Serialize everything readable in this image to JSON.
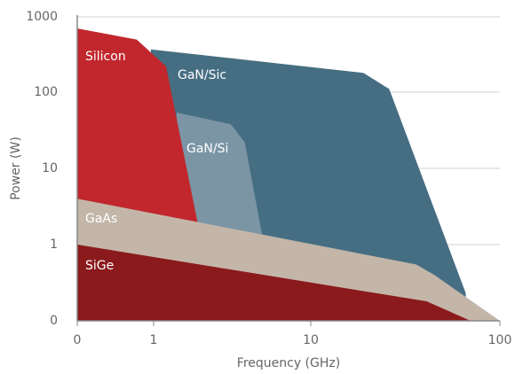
{
  "chart_data": {
    "type": "region",
    "x_label": "Frequency (GHz)",
    "y_label": "Power (W)",
    "log_x": true,
    "log_y": true,
    "grid": true,
    "xticks": [
      0,
      1,
      10,
      100
    ],
    "yticks": [
      0,
      1,
      10,
      100,
      1000
    ],
    "series": [
      {
        "name": "GaN/Sic",
        "color": "#466e82",
        "x": [
          0.92,
          19,
          26,
          66,
          66,
          0.92
        ],
        "values": [
          370,
          180,
          110,
          0.23,
          0,
          0
        ]
      },
      {
        "name": "GaN/Si",
        "color": "#7b95a5",
        "x": [
          1.4,
          3.1,
          3.8,
          4.9,
          4.9,
          1.4
        ],
        "values": [
          54,
          38,
          22,
          1.35,
          0,
          0
        ]
      },
      {
        "name": "Silicon",
        "color": "#c1272d",
        "x": [
          0,
          0.6,
          1.2,
          1.9,
          1.9,
          0
        ],
        "values": [
          700,
          500,
          220,
          2,
          0,
          0
        ]
      },
      {
        "name": "GaAs",
        "color": "#c3b6a9",
        "x": [
          0,
          36,
          45,
          100,
          0
        ],
        "values": [
          4,
          0.55,
          0.4,
          0,
          0
        ]
      },
      {
        "name": "SiGe",
        "color": "#8b1a1c",
        "x": [
          0,
          41,
          70,
          0
        ],
        "values": [
          1,
          0.18,
          0,
          0
        ]
      }
    ]
  }
}
